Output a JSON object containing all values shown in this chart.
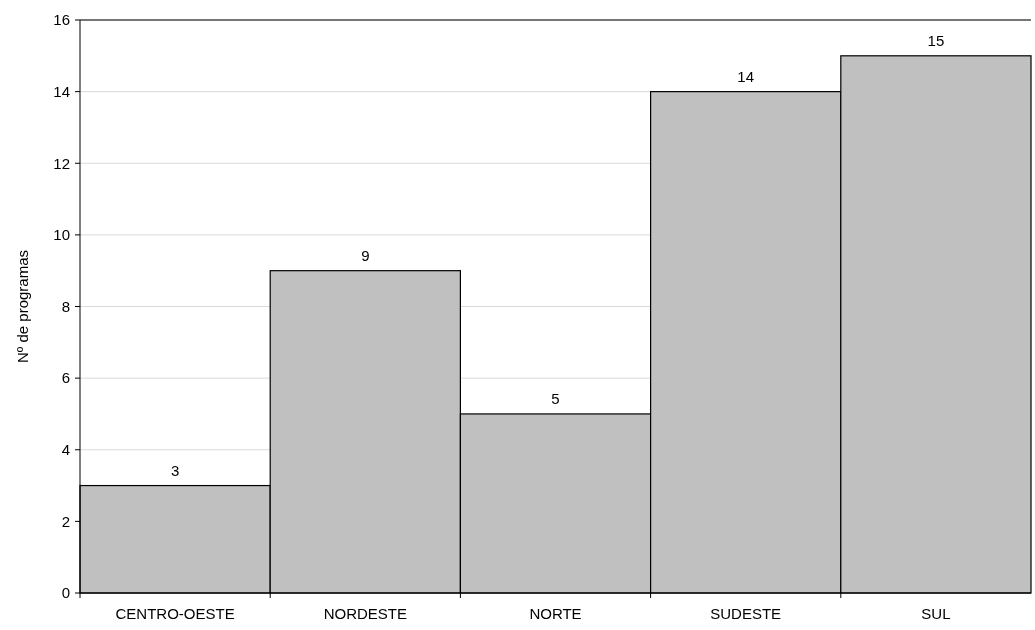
{
  "chart_data": {
    "type": "bar",
    "ylabel": "Nº de programas",
    "categories": [
      "CENTRO-OESTE",
      "NORDESTE",
      "NORTE",
      "SUDESTE",
      "SUL"
    ],
    "values": [
      3,
      9,
      5,
      14,
      15
    ],
    "color": "#c0c0c0",
    "ylim": [
      0,
      16
    ],
    "yticks": [
      0,
      2,
      4,
      6,
      8,
      10,
      12,
      14,
      16
    ],
    "grid": "y",
    "data_labels": true
  }
}
